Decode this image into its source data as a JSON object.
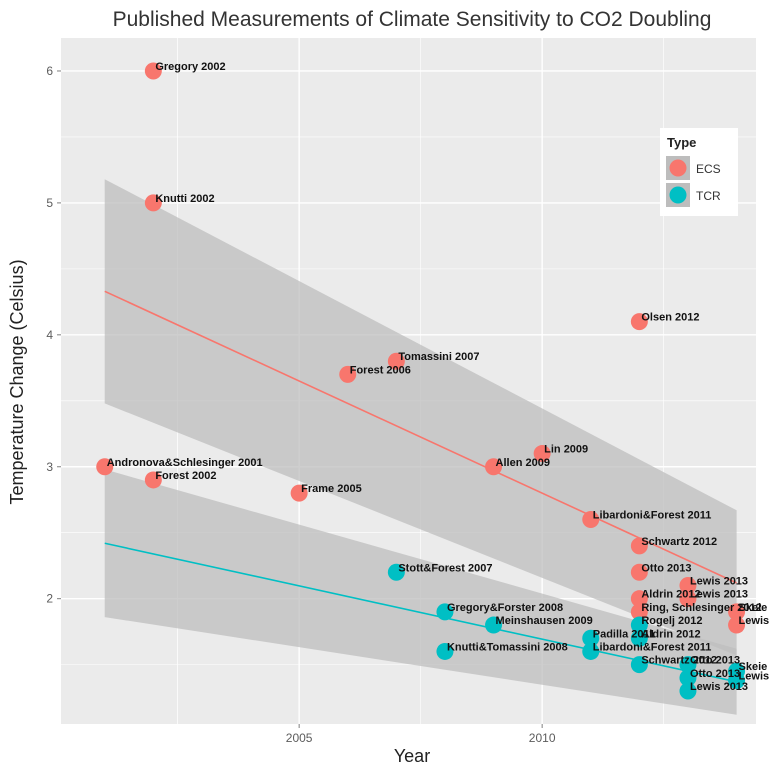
{
  "chart_data": {
    "type": "scatter",
    "title": "Published Measurements of Climate Sensitivity to CO2 Doubling",
    "xlabel": "Year",
    "ylabel": "Temperature Change (Celsius)",
    "xlim": [
      2000.1,
      2014.4
    ],
    "ylim": [
      1.05,
      6.25
    ],
    "x_ticks": [
      2005,
      2010
    ],
    "y_ticks": [
      2,
      3,
      4,
      5,
      6
    ],
    "grid": true,
    "legend": {
      "title": "Type",
      "position": "right-inset",
      "entries": [
        "ECS",
        "TCR"
      ]
    },
    "colors": {
      "ECS": "#f8766d",
      "TCR": "#00bfc4",
      "panel": "#ebebeb",
      "grid": "#ffffff",
      "band": "#bdbdbd"
    },
    "series": [
      {
        "name": "ECS",
        "points": [
          {
            "x": 2001,
            "y": 3.0,
            "label": "Andronova&Schlesinger 2001"
          },
          {
            "x": 2002,
            "y": 6.0,
            "label": "Gregory 2002"
          },
          {
            "x": 2002,
            "y": 5.0,
            "label": "Knutti 2002"
          },
          {
            "x": 2002,
            "y": 2.9,
            "label": "Forest 2002"
          },
          {
            "x": 2005,
            "y": 2.8,
            "label": "Frame 2005"
          },
          {
            "x": 2006,
            "y": 3.7,
            "label": "Forest 2006"
          },
          {
            "x": 2007,
            "y": 3.8,
            "label": "Tomassini 2007"
          },
          {
            "x": 2009,
            "y": 3.0,
            "label": "Allen 2009"
          },
          {
            "x": 2010,
            "y": 3.1,
            "label": "Lin 2009"
          },
          {
            "x": 2011,
            "y": 2.6,
            "label": "Libardoni&Forest 2011"
          },
          {
            "x": 2012,
            "y": 4.1,
            "label": "Olsen 2012"
          },
          {
            "x": 2012,
            "y": 2.4,
            "label": "Schwartz 2012"
          },
          {
            "x": 2012,
            "y": 2.2,
            "label": "Otto 2013"
          },
          {
            "x": 2013,
            "y": 2.1,
            "label": "Lewis 2013"
          },
          {
            "x": 2012,
            "y": 2.0,
            "label": "Aldrin 2012"
          },
          {
            "x": 2013,
            "y": 2.0,
            "label": "Lewis 2013"
          },
          {
            "x": 2012,
            "y": 1.9,
            "label": "Ring, Schlesinger 2012"
          },
          {
            "x": 2014,
            "y": 1.9,
            "label": "Skeie"
          },
          {
            "x": 2014,
            "y": 1.8,
            "label": "Lewis"
          }
        ],
        "fit": {
          "x": [
            2001,
            2014
          ],
          "y": [
            4.33,
            2.12
          ],
          "band_upper": [
            5.18,
            2.67
          ],
          "band_lower": [
            3.48,
            1.57
          ]
        }
      },
      {
        "name": "TCR",
        "points": [
          {
            "x": 2007,
            "y": 2.2,
            "label": "Stott&Forest 2007"
          },
          {
            "x": 2008,
            "y": 1.9,
            "label": "Gregory&Forster 2008"
          },
          {
            "x": 2009,
            "y": 1.8,
            "label": "Meinshausen 2009"
          },
          {
            "x": 2008,
            "y": 1.6,
            "label": "Knutti&Tomassini 2008"
          },
          {
            "x": 2011,
            "y": 1.7,
            "label": "Padilla 2011"
          },
          {
            "x": 2011,
            "y": 1.6,
            "label": "Libardoni&Forest 2011"
          },
          {
            "x": 2012,
            "y": 1.8,
            "label": "Rogelj 2012"
          },
          {
            "x": 2012,
            "y": 1.7,
            "label": "Aldrin 2012"
          },
          {
            "x": 2012,
            "y": 1.5,
            "label": "Schwartz 2012"
          },
          {
            "x": 2013,
            "y": 1.5,
            "label": "Otto 2013"
          },
          {
            "x": 2013,
            "y": 1.4,
            "label": "Otto 2013"
          },
          {
            "x": 2013,
            "y": 1.3,
            "label": "Lewis 2013"
          },
          {
            "x": 2014,
            "y": 1.45,
            "label": "Skeie"
          },
          {
            "x": 2014,
            "y": 1.38,
            "label": "Lewis"
          }
        ],
        "fit": {
          "x": [
            2001,
            2014
          ],
          "y": [
            2.42,
            1.37
          ],
          "band_upper": [
            2.98,
            1.62
          ],
          "band_lower": [
            1.86,
            1.12
          ]
        }
      }
    ]
  }
}
